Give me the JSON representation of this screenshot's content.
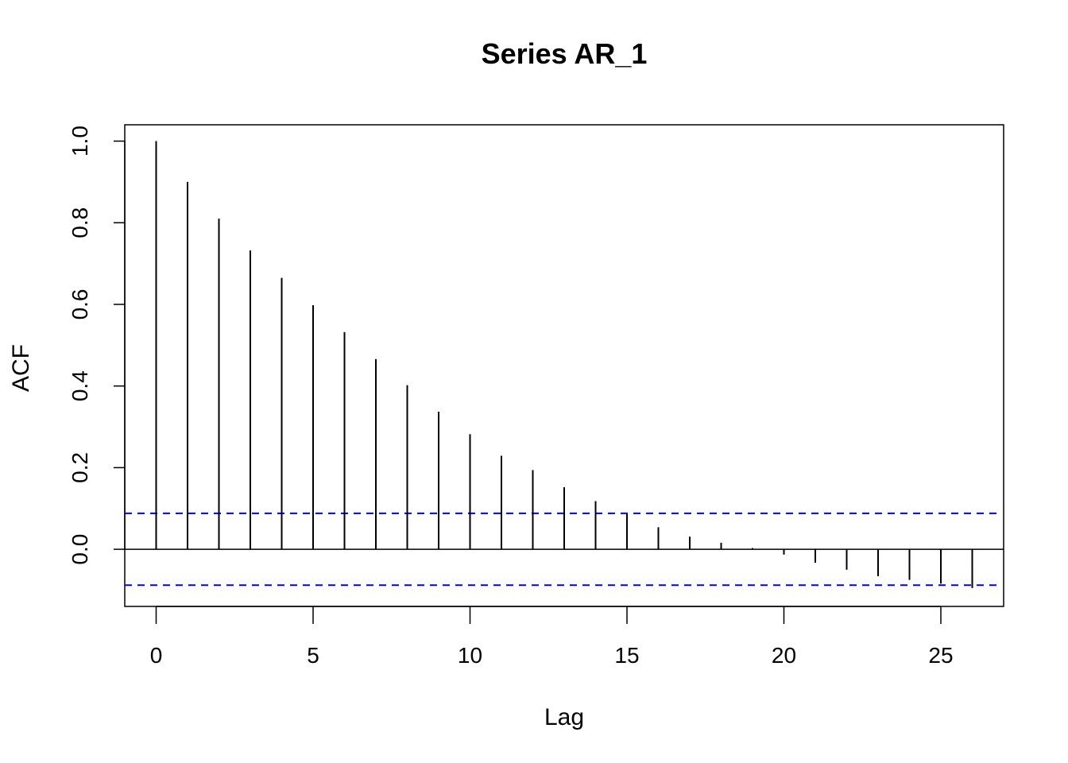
{
  "chart_data": {
    "type": "bar",
    "title": "Series  AR_1",
    "xlabel": "Lag",
    "ylabel": "ACF",
    "xlim": [
      -1,
      27
    ],
    "ylim": [
      -0.14,
      1.04
    ],
    "x_ticks": [
      0,
      5,
      10,
      15,
      20,
      25
    ],
    "x_tick_labels": [
      "0",
      "5",
      "10",
      "15",
      "20",
      "25"
    ],
    "y_ticks": [
      0.0,
      0.2,
      0.4,
      0.6,
      0.8,
      1.0
    ],
    "y_tick_labels": [
      "0.0",
      "0.2",
      "0.4",
      "0.6",
      "0.8",
      "1.0"
    ],
    "lags": [
      0,
      1,
      2,
      3,
      4,
      5,
      6,
      7,
      8,
      9,
      10,
      11,
      12,
      13,
      14,
      15,
      16,
      17,
      18,
      19,
      20,
      21,
      22,
      23,
      24,
      25,
      26
    ],
    "acf": [
      1.0,
      0.9,
      0.81,
      0.732,
      0.665,
      0.598,
      0.532,
      0.466,
      0.402,
      0.337,
      0.282,
      0.229,
      0.194,
      0.152,
      0.118,
      0.086,
      0.054,
      0.031,
      0.016,
      0.003,
      -0.013,
      -0.033,
      -0.05,
      -0.066,
      -0.075,
      -0.084,
      -0.095
    ],
    "confidence_bound": 0.088,
    "colors": {
      "acf_bars": "#000000",
      "confidence_lines": "#0000ee",
      "zero_line": "#000000"
    },
    "grid": false
  }
}
